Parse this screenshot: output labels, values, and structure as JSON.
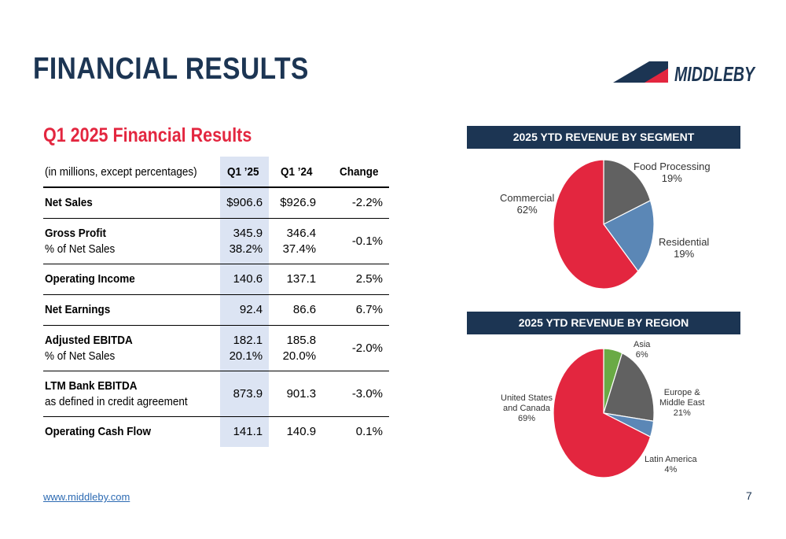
{
  "header": {
    "title": "FINANCIAL RESULTS",
    "logo_text": "MIDDLEBY"
  },
  "table": {
    "subtitle": "Q1 2025 Financial Results",
    "header": [
      "(in millions, except percentages)",
      "Q1 ’25",
      "Q1 ’24",
      "Change"
    ],
    "rows": [
      {
        "label": "Net Sales",
        "q125": "$906.6",
        "q124": "$926.9",
        "change": "-2.2%"
      },
      {
        "label": "Gross Profit",
        "sublabel": "% of Net Sales",
        "q125": "345.9",
        "q125b": "38.2%",
        "q124": "346.4",
        "q124b": "37.4%",
        "change": "-0.1%"
      },
      {
        "label": "Operating Income",
        "q125": "140.6",
        "q124": "137.1",
        "change": "2.5%"
      },
      {
        "label": "Net Earnings",
        "q125": "92.4",
        "q124": "86.6",
        "change": "6.7%"
      },
      {
        "label": "Adjusted EBITDA",
        "sublabel": "% of Net Sales",
        "q125": "182.1",
        "q125b": "20.1%",
        "q124": "185.8",
        "q124b": "20.0%",
        "change": "-2.0%"
      },
      {
        "label": "LTM Bank EBITDA",
        "sublabel": "as defined in credit agreement",
        "q125": "873.9",
        "q124": "901.3",
        "change": "-3.0%"
      },
      {
        "label": "Operating Cash Flow",
        "q125": "141.1",
        "q124": "140.9",
        "change": "0.1%"
      }
    ]
  },
  "chart_data": [
    {
      "type": "pie",
      "title": "2025 YTD REVENUE BY SEGMENT",
      "slices": [
        {
          "label": "Food Processing",
          "pct_label": "19%",
          "value": 19,
          "color": "#616161"
        },
        {
          "label": "Residential",
          "pct_label": "19%",
          "value": 19,
          "color": "#5b87b6"
        },
        {
          "label": "Commercial",
          "pct_label": "62%",
          "value": 62,
          "color": "#e3263f"
        }
      ]
    },
    {
      "type": "pie",
      "title": "2025 YTD REVENUE BY REGION",
      "slices": [
        {
          "label": "Asia",
          "pct_label": "6%",
          "value": 6,
          "color": "#6aaa45"
        },
        {
          "label": "Europe & Middle East",
          "label_lines": [
            "Europe &",
            "Middle East"
          ],
          "pct_label": "21%",
          "value": 21,
          "color": "#616161"
        },
        {
          "label": "Latin America",
          "pct_label": "4%",
          "value": 4,
          "color": "#5b87b6"
        },
        {
          "label": "United States and Canada",
          "label_lines": [
            "United States",
            "and Canada"
          ],
          "pct_label": "69%",
          "value": 69,
          "color": "#e3263f"
        }
      ]
    }
  ],
  "footer": {
    "link": "www.middleby.com",
    "page_number": "7"
  },
  "colors": {
    "navy": "#1c3553",
    "red": "#e3263f",
    "highlight": "#dce4f3"
  }
}
